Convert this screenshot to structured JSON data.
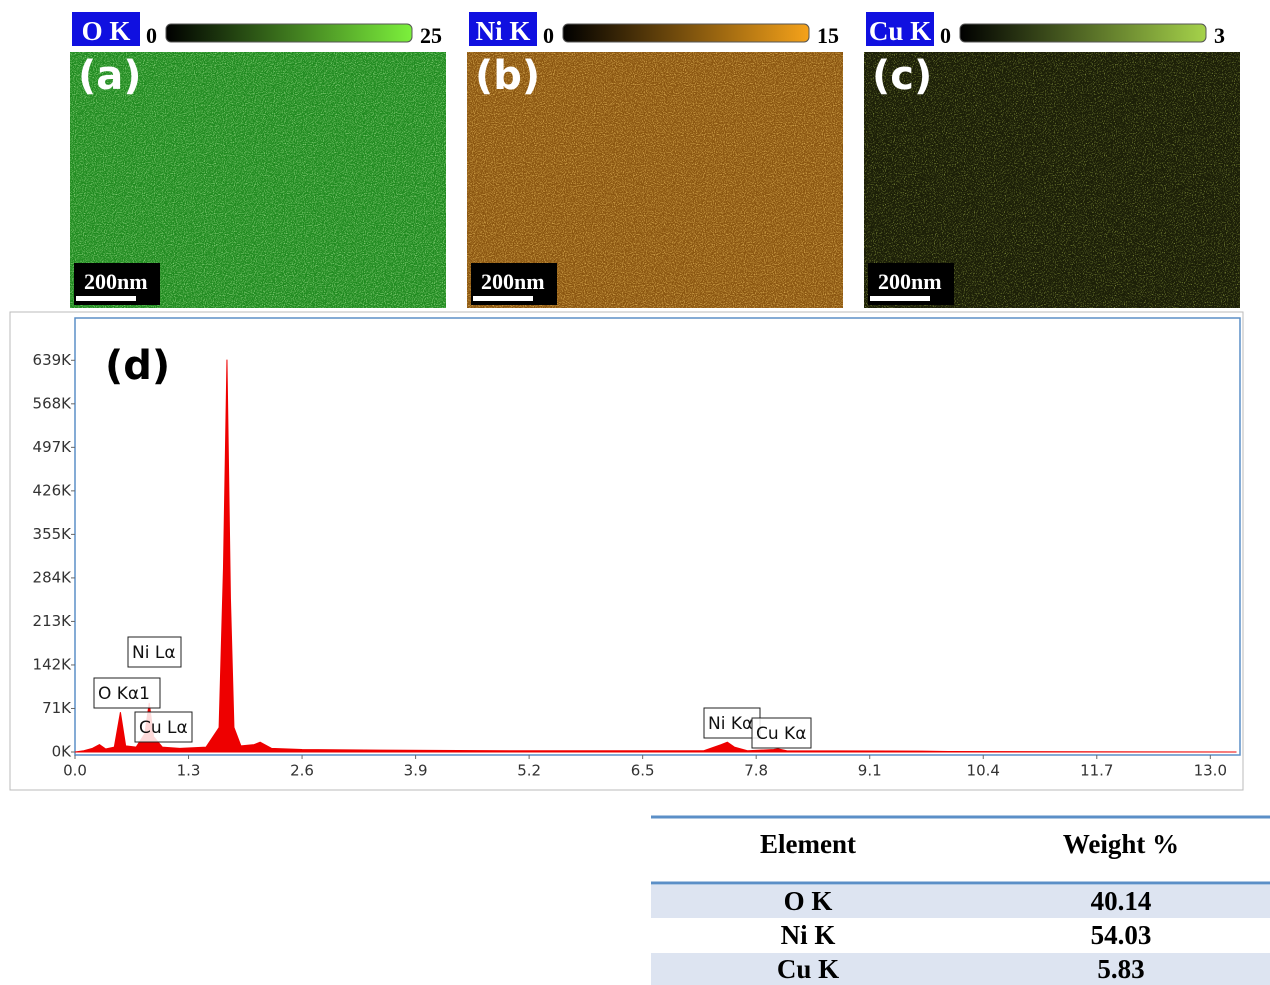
{
  "maps": [
    {
      "element": "O K",
      "min": 0,
      "max": 25,
      "panel": "(a)",
      "scale": "200nm"
    },
    {
      "element": "Ni K",
      "min": 0,
      "max": 15,
      "panel": "(b)",
      "scale": "200nm"
    },
    {
      "element": "Cu K",
      "min": 0,
      "max": 3,
      "panel": "(c)",
      "scale": "200nm"
    }
  ],
  "chart_data": {
    "type": "area",
    "title": "(d)",
    "color": "#ee0000",
    "annotations": [
      "Ni Lα",
      "O  Kα1",
      "Cu Lα",
      "Ni Kα",
      "Cu Kα"
    ],
    "x": [
      0.0,
      0.1,
      0.2,
      0.28,
      0.35,
      0.45,
      0.52,
      0.58,
      0.7,
      0.8,
      0.85,
      0.9,
      1.0,
      1.2,
      1.5,
      1.65,
      1.7,
      1.74,
      1.78,
      1.82,
      1.9,
      2.05,
      2.12,
      2.25,
      2.6,
      3.5,
      5.0,
      7.2,
      7.4,
      7.47,
      7.55,
      7.7,
      8.0,
      8.05,
      8.15,
      9.7,
      10.0,
      13.3
    ],
    "values": [
      0,
      2000,
      6000,
      12000,
      5000,
      8000,
      65000,
      10000,
      8000,
      30000,
      80000,
      25000,
      8000,
      6000,
      8000,
      40000,
      300000,
      640000,
      250000,
      40000,
      10000,
      12000,
      16000,
      6000,
      4000,
      3000,
      2000,
      2000,
      12000,
      16000,
      8000,
      2000,
      4000,
      5000,
      2000,
      1500,
      800,
      0
    ],
    "xlim": [
      0,
      13.34
    ],
    "ylim": [
      0,
      708000
    ],
    "xticks": [
      {
        "value": 0,
        "label": "0.0"
      },
      1.3,
      2.6,
      3.9,
      5.2,
      6.5,
      7.8,
      9.1,
      10.4,
      11.7,
      {
        "value": 13,
        "label": "13.0"
      }
    ],
    "yticks": [
      {
        "value": 0,
        "label": "0K"
      },
      {
        "value": 71000,
        "label": "71K"
      },
      {
        "value": 142000,
        "label": "142K"
      },
      {
        "value": 213000,
        "label": "213K"
      },
      {
        "value": 284000,
        "label": "284K"
      },
      {
        "value": 355000,
        "label": "355K"
      },
      {
        "value": 426000,
        "label": "426K"
      },
      {
        "value": 497000,
        "label": "497K"
      },
      {
        "value": 568000,
        "label": "568K"
      },
      {
        "value": 639000,
        "label": "639K"
      }
    ]
  },
  "table": {
    "header": [
      "Element",
      "Weight %"
    ],
    "rows": [
      [
        "O K",
        "40.14"
      ],
      [
        "Ni K",
        "54.03"
      ],
      [
        "Cu K",
        "5.83"
      ]
    ]
  }
}
